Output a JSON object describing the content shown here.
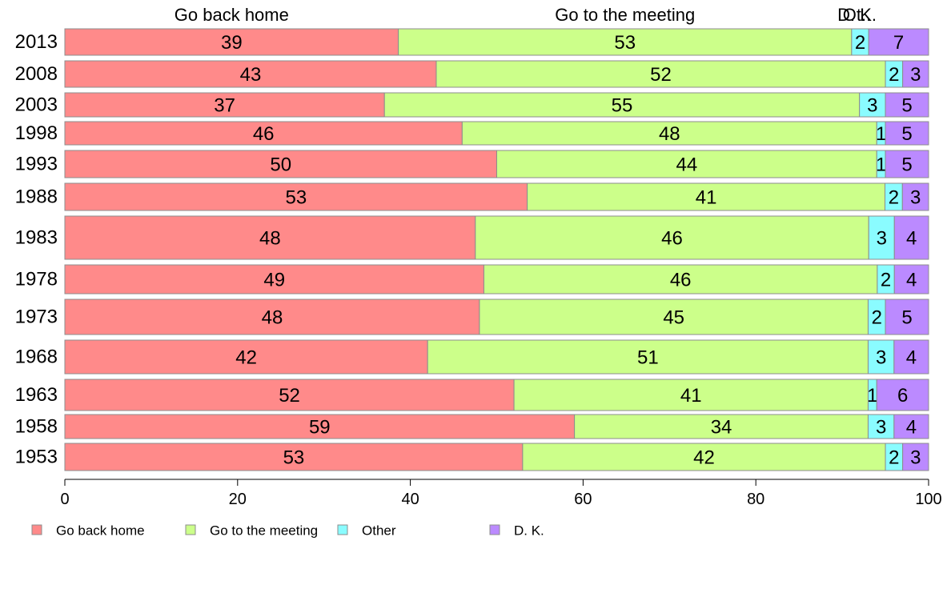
{
  "chart_data": {
    "type": "bar",
    "orientation": "horizontal",
    "stacked": true,
    "categories": [
      "2013",
      "2008",
      "2003",
      "1998",
      "1993",
      "1988",
      "1983",
      "1978",
      "1973",
      "1968",
      "1963",
      "1958",
      "1953"
    ],
    "series": [
      {
        "name": "Go back home",
        "color": "#ff8a8a",
        "values": [
          39,
          43,
          37,
          46,
          50,
          53,
          48,
          49,
          48,
          42,
          52,
          59,
          53
        ]
      },
      {
        "name": "Go to the meeting",
        "color": "#ccff8a",
        "values": [
          53,
          52,
          55,
          48,
          44,
          41,
          46,
          46,
          45,
          51,
          41,
          34,
          42
        ]
      },
      {
        "name": "Other",
        "color": "#8afcff",
        "values": [
          2,
          2,
          3,
          1,
          1,
          2,
          3,
          2,
          2,
          3,
          1,
          3,
          2
        ]
      },
      {
        "name": "D. K.",
        "color": "#bb8aff",
        "values": [
          7,
          3,
          5,
          5,
          5,
          3,
          4,
          4,
          5,
          4,
          6,
          4,
          3
        ]
      }
    ],
    "column_headers": [
      "Go back home",
      "Go to the meeting",
      "Ot..",
      "D. K."
    ],
    "xlim": [
      0,
      100
    ],
    "xticks": [
      "0",
      "20",
      "40",
      "60",
      "80",
      "100"
    ],
    "legend_position": "bottom-left",
    "grid": false
  }
}
